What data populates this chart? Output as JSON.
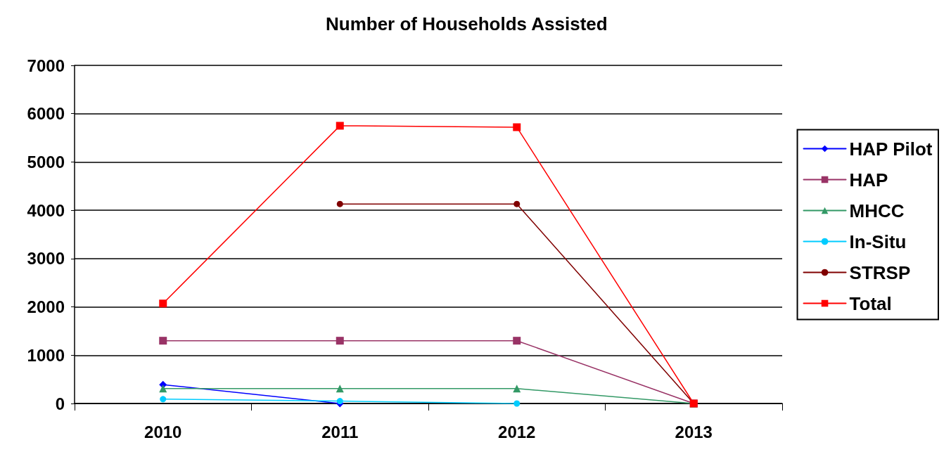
{
  "chart_data": {
    "type": "line",
    "title": "Number of Households Assisted",
    "categories": [
      "2010",
      "2011",
      "2012",
      "2013"
    ],
    "series": [
      {
        "name": "HAP Pilot",
        "color": "#0000ff",
        "marker": "diamond",
        "values": [
          390,
          0,
          null,
          null
        ]
      },
      {
        "name": "HAP",
        "color": "#993366",
        "marker": "square",
        "values": [
          1300,
          1300,
          1300,
          0
        ]
      },
      {
        "name": "MHCC",
        "color": "#339966",
        "marker": "triangle",
        "values": [
          310,
          310,
          310,
          0
        ]
      },
      {
        "name": "In-Situ",
        "color": "#00ccff",
        "marker": "circle",
        "values": [
          90,
          50,
          0,
          null
        ]
      },
      {
        "name": "STRSP",
        "color": "#800000",
        "marker": "circle",
        "values": [
          null,
          4130,
          4130,
          0
        ]
      },
      {
        "name": "Total",
        "color": "#ff0000",
        "marker": "square",
        "values": [
          2070,
          5750,
          5720,
          0
        ]
      }
    ],
    "ylim": [
      0,
      7000
    ],
    "yticks": [
      0,
      1000,
      2000,
      3000,
      4000,
      5000,
      6000,
      7000
    ],
    "grid": "y",
    "legend": "right"
  }
}
